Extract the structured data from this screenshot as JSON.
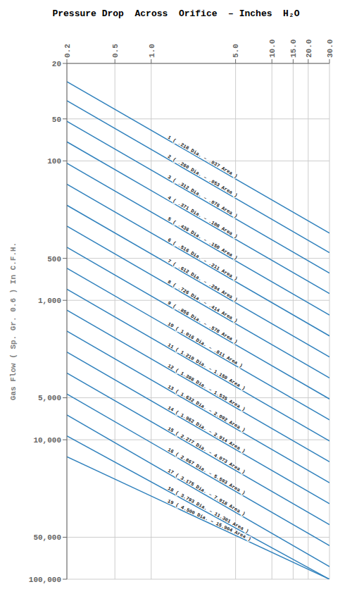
{
  "chart_data": {
    "type": "line",
    "title": "Pressure Drop  Across  Orifice  – Inches  H₂O",
    "ylabel": "Gas Flow  ( Sp. Gr. 0.6 )  In C.F.H.",
    "log": true,
    "grid": true,
    "x": [
      0.2,
      30.0
    ],
    "xlim": [
      0.2,
      30.0
    ],
    "ylim": [
      20,
      100000
    ],
    "xticks": [
      0.2,
      0.5,
      {
        "value": 1.0,
        "label": "1.0"
      },
      {
        "value": 5.0,
        "label": "5.0"
      },
      {
        "value": 10.0,
        "label": "10.0"
      },
      {
        "value": 15.0,
        "label": "15.0"
      },
      {
        "value": 20.0,
        "label": "20.0"
      },
      {
        "value": 30.0,
        "label": "30.0"
      }
    ],
    "yticks": [
      20,
      50,
      100,
      500,
      {
        "value": 1000,
        "label": "1,000"
      },
      {
        "value": 5000,
        "label": "5,000"
      },
      {
        "value": 10000,
        "label": "10,000"
      },
      {
        "value": 50000,
        "label": "50,000"
      },
      {
        "value": 100000,
        "label": "100,000"
      }
    ],
    "series": [
      {
        "name": "1   ( .218 Dia. – .037 Area )",
        "values": [
          27,
          330
        ]
      },
      {
        "name": "2   ( .260 Dia. – .053 Area )",
        "values": [
          37,
          455
        ]
      },
      {
        "name": "3   ( .312 Dia. – .076 Area )",
        "values": [
          52,
          638
        ]
      },
      {
        "name": "4   ( .371 Dia. – .108 Area )",
        "values": [
          73,
          895
        ]
      },
      {
        "name": "5   ( .436 Dia. – .150 Area )",
        "values": [
          104,
          1275
        ]
      },
      {
        "name": "6   ( .516 Dia. – .211 Area )",
        "values": [
          147,
          1800
        ]
      },
      {
        "name": "7   ( .612 Dia. – .294 Area )",
        "values": [
          208,
          2550
        ]
      },
      {
        "name": "8   ( .726 Dia. – .414 Area )",
        "values": [
          294,
          3600
        ]
      },
      {
        "name": "9   ( .856 Dia. – .578 Area )",
        "values": [
          416,
          5100
        ]
      },
      {
        "name": "10  ( 1.016 Dia. – .811 Area )",
        "values": [
          588,
          7200
        ]
      },
      {
        "name": "11  ( 1.210 Dia. – 1.150 Area )",
        "values": [
          832,
          10200
        ]
      },
      {
        "name": "12  ( 1.398 Dia. – 1.535 Area )",
        "values": [
          1176,
          14400
        ]
      },
      {
        "name": "13  ( 1.632 Dia. – 2.092 Area )",
        "values": [
          1663,
          20350
        ]
      },
      {
        "name": "14  ( 1.962 Dia. – 2.914 Area )",
        "values": [
          2350,
          28750
        ]
      },
      {
        "name": "15  ( 2.277 Dia. – 4.073 Area )",
        "values": [
          3320,
          40600
        ]
      },
      {
        "name": "16  ( 2.867 Dia. – 5.593 Area )",
        "values": [
          4695,
          57400
        ]
      },
      {
        "name": "17  ( 3.175 Dia. – 7.918 Area )",
        "values": [
          6640,
          81200
        ]
      },
      {
        "name": "18  ( 3.793 Dia. – 11.301 Area )",
        "values": [
          9390,
          100000
        ]
      },
      {
        "name": "19  ( 4.500 Dia. – 15.904 Area )",
        "values": [
          13250,
          100000
        ]
      }
    ]
  }
}
